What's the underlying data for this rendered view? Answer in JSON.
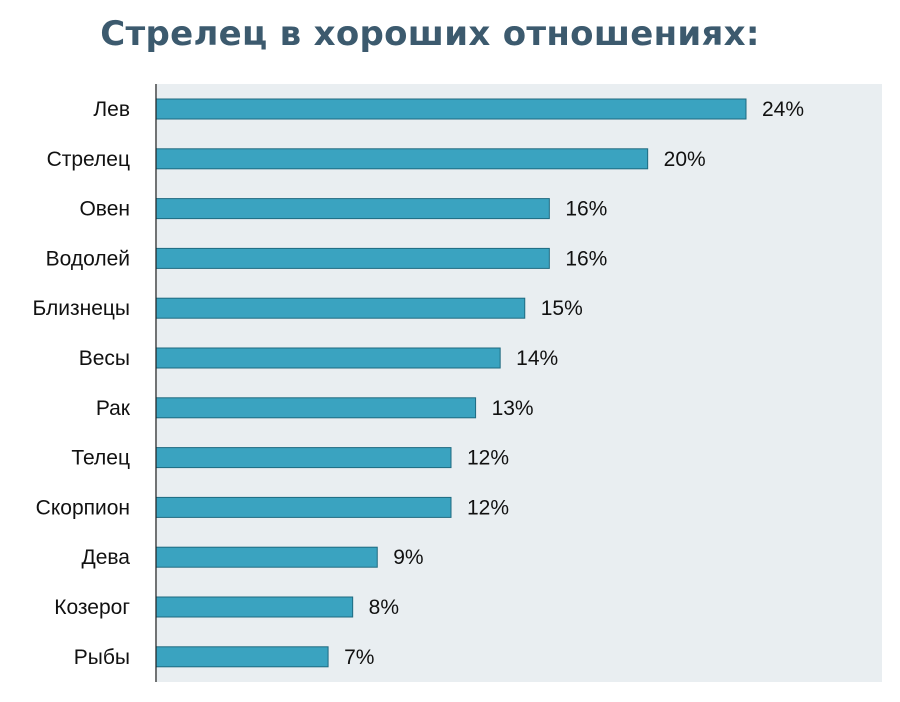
{
  "chart_data": {
    "type": "bar",
    "orientation": "horizontal",
    "title": "Стрелец в хороших отношениях:",
    "categories": [
      "Лев",
      "Стрелец",
      "Овен",
      "Водолей",
      "Близнецы",
      "Весы",
      "Рак",
      "Телец",
      "Скорпион",
      "Дева",
      "Козерог",
      "Рыбы"
    ],
    "values": [
      24,
      20,
      16,
      16,
      15,
      14,
      13,
      12,
      12,
      9,
      8,
      7
    ],
    "value_labels": [
      "24%",
      "20%",
      "16%",
      "16%",
      "15%",
      "14%",
      "13%",
      "12%",
      "12%",
      "9%",
      "8%",
      "7%"
    ],
    "xlim": [
      0,
      29
    ],
    "grid": false,
    "legend": "none",
    "colors": {
      "bar": "#3aa3c0",
      "bar_edge": "#1f6a80",
      "plot_background": "#e9eef1",
      "axis": "#222222",
      "title": "#3c5a6e"
    }
  }
}
